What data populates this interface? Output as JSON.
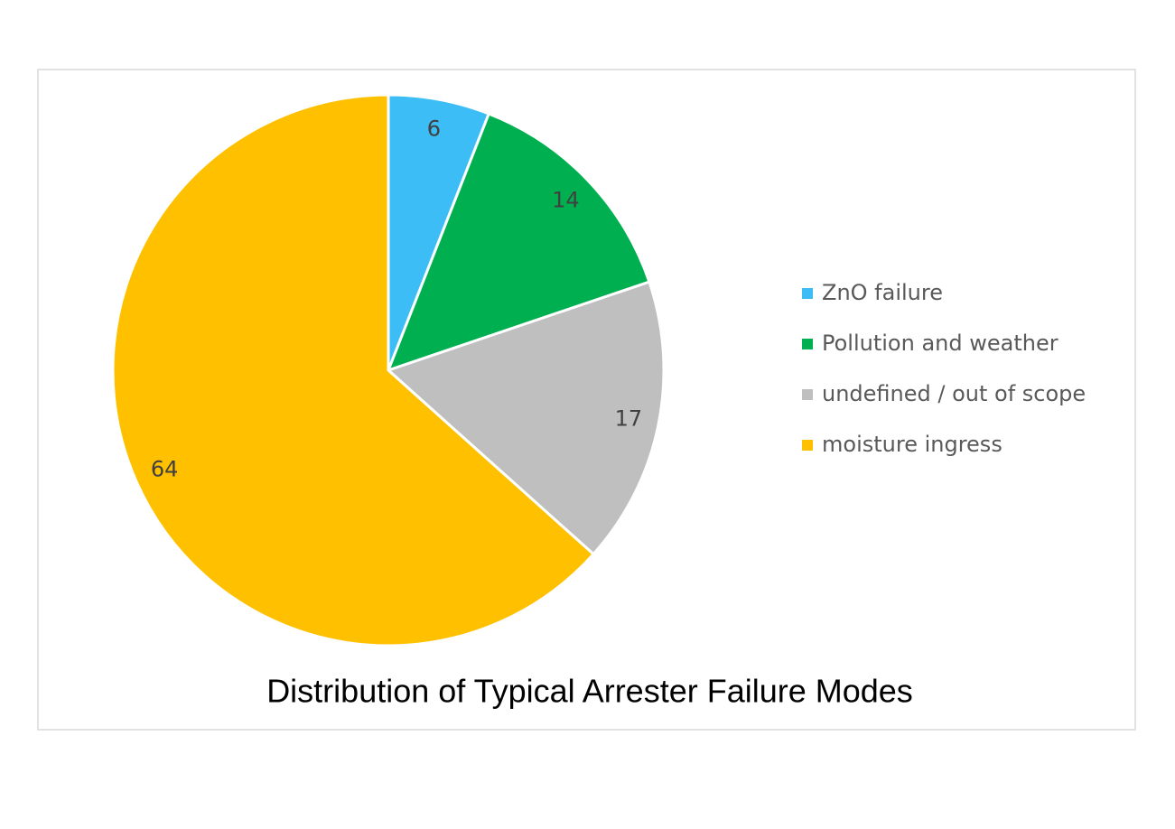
{
  "chart_data": {
    "type": "pie",
    "title": "Distribution of Typical Arrester Failure Modes",
    "categories": [
      "ZnO failure",
      "Pollution and weather",
      "undefined / out of scope",
      "moisture ingress"
    ],
    "values": [
      6,
      14,
      17,
      64
    ],
    "colors": [
      "#3dbdf6",
      "#00b050",
      "#bfbfbf",
      "#ffc000"
    ],
    "legend": "right"
  }
}
